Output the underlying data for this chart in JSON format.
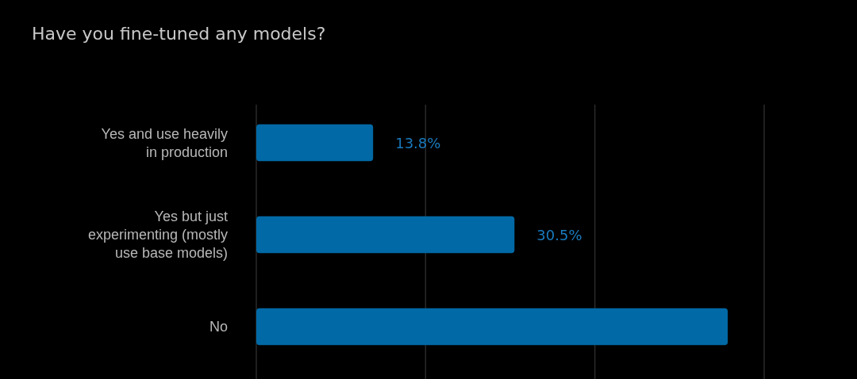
{
  "chart_data": {
    "type": "bar",
    "orientation": "horizontal",
    "title": "Have you fine-tuned any models?",
    "categories": [
      "Yes and use heavily in production",
      "Yes but just experimenting (mostly use base models)",
      "No"
    ],
    "values": [
      13.8,
      30.5,
      55.7
    ],
    "value_labels": [
      "13.8%",
      "30.5%",
      null
    ],
    "color": "#0169a5",
    "xlim": [
      0,
      60
    ],
    "xticks": [
      {
        "value": 0,
        "label": null
      },
      {
        "value": 20,
        "label": null
      },
      {
        "value": 40,
        "label": null
      },
      {
        "value": 60,
        "label": null
      }
    ],
    "tick_labels": false,
    "grid": "x"
  }
}
